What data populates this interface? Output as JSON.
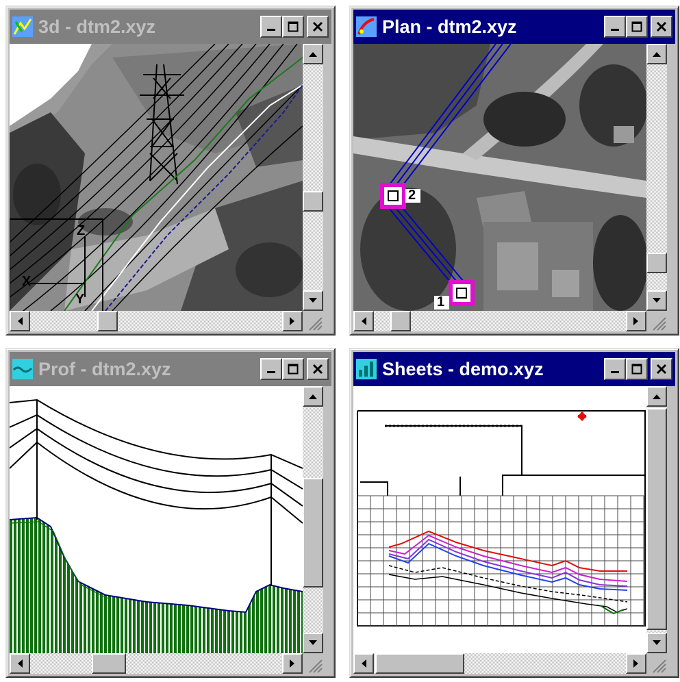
{
  "windows": {
    "w3d": {
      "title": "3d - dtm2.xyz",
      "active": false,
      "icon": "3d-view-icon"
    },
    "plan": {
      "title": "Plan - dtm2.xyz",
      "active": true,
      "icon": "plan-view-icon"
    },
    "prof": {
      "title": "Prof - dtm2.xyz",
      "active": false,
      "icon": "profile-view-icon"
    },
    "sheets": {
      "title": "Sheets - demo.xyz",
      "active": true,
      "icon": "sheets-view-icon"
    }
  },
  "w3d_axes": {
    "x": "X",
    "y": "Y",
    "z": "Z"
  },
  "plan_points": {
    "p1": "1",
    "p2": "2"
  },
  "scroll": {
    "w3d": {
      "v": 0.55,
      "h": 0.35
    },
    "plan": {
      "v": 0.85,
      "h": 0.15
    },
    "prof": {
      "v": 0.55,
      "h": 0.35
    },
    "sheets": {
      "v": 0.55,
      "h": 0.45
    }
  },
  "colors": {
    "active_title": "#000080",
    "inactive_title": "#808080",
    "span_line": "#0000cc",
    "point_marker": "#e010d0",
    "ground": "#107010",
    "profile_red": "#e01010",
    "profile_magenta": "#cc22cc"
  }
}
